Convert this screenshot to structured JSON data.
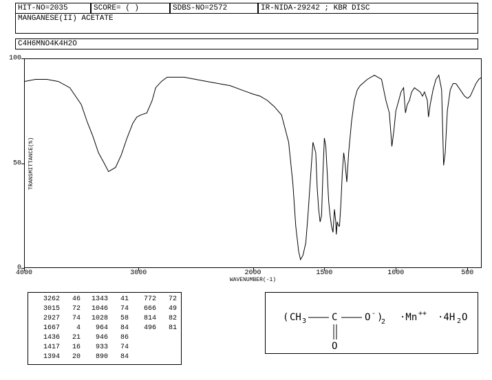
{
  "header": {
    "hit_no": "HIT-NO=2035",
    "score": "SCORE=  (  )",
    "sdbs_no": "SDBS-NO=2572",
    "ir_info": "IR-NIDA-29242 ; KBR DISC",
    "compound_name": "MANGANESE(II) ACETATE",
    "formula": "C4H6MNO4K4H2O"
  },
  "chart": {
    "type": "line",
    "y_label": "TRANSMITTANCE(%)",
    "x_label": "WAVENUMBER(-1)",
    "xlim": [
      4000,
      400
    ],
    "ylim": [
      0,
      100
    ],
    "y_ticks": [
      0,
      50,
      100
    ],
    "x_ticks": [
      4000,
      3000,
      2000,
      1500,
      1000,
      500
    ],
    "line_color": "#000000",
    "background_color": "#ffffff",
    "points": [
      [
        4000,
        89
      ],
      [
        3900,
        90
      ],
      [
        3800,
        90
      ],
      [
        3700,
        89
      ],
      [
        3600,
        86
      ],
      [
        3500,
        78
      ],
      [
        3450,
        70
      ],
      [
        3400,
        63
      ],
      [
        3350,
        55
      ],
      [
        3300,
        50
      ],
      [
        3262,
        46
      ],
      [
        3200,
        48
      ],
      [
        3150,
        54
      ],
      [
        3100,
        62
      ],
      [
        3050,
        69
      ],
      [
        3015,
        72
      ],
      [
        2980,
        73
      ],
      [
        2927,
        74
      ],
      [
        2880,
        80
      ],
      [
        2850,
        86
      ],
      [
        2800,
        89
      ],
      [
        2750,
        91
      ],
      [
        2700,
        91
      ],
      [
        2600,
        91
      ],
      [
        2500,
        90
      ],
      [
        2400,
        89
      ],
      [
        2300,
        88
      ],
      [
        2200,
        87
      ],
      [
        2100,
        85
      ],
      [
        2050,
        84
      ],
      [
        2000,
        83
      ],
      [
        1950,
        82
      ],
      [
        1900,
        80
      ],
      [
        1850,
        77
      ],
      [
        1800,
        73
      ],
      [
        1750,
        60
      ],
      [
        1720,
        40
      ],
      [
        1700,
        20
      ],
      [
        1680,
        8
      ],
      [
        1667,
        4
      ],
      [
        1650,
        6
      ],
      [
        1630,
        12
      ],
      [
        1615,
        25
      ],
      [
        1600,
        40
      ],
      [
        1580,
        60
      ],
      [
        1560,
        55
      ],
      [
        1550,
        38
      ],
      [
        1540,
        28
      ],
      [
        1530,
        22
      ],
      [
        1520,
        25
      ],
      [
        1510,
        45
      ],
      [
        1500,
        62
      ],
      [
        1490,
        58
      ],
      [
        1480,
        45
      ],
      [
        1470,
        32
      ],
      [
        1460,
        25
      ],
      [
        1450,
        20
      ],
      [
        1440,
        17
      ],
      [
        1436,
        21
      ],
      [
        1430,
        28
      ],
      [
        1420,
        22
      ],
      [
        1417,
        16
      ],
      [
        1410,
        22
      ],
      [
        1400,
        20
      ],
      [
        1394,
        20
      ],
      [
        1385,
        30
      ],
      [
        1375,
        45
      ],
      [
        1365,
        55
      ],
      [
        1355,
        50
      ],
      [
        1343,
        41
      ],
      [
        1330,
        55
      ],
      [
        1310,
        70
      ],
      [
        1290,
        80
      ],
      [
        1270,
        85
      ],
      [
        1250,
        87
      ],
      [
        1200,
        90
      ],
      [
        1150,
        92
      ],
      [
        1100,
        90
      ],
      [
        1070,
        80
      ],
      [
        1046,
        74
      ],
      [
        1028,
        58
      ],
      [
        1015,
        65
      ],
      [
        1000,
        75
      ],
      [
        980,
        80
      ],
      [
        964,
        84
      ],
      [
        946,
        86
      ],
      [
        933,
        74
      ],
      [
        920,
        78
      ],
      [
        905,
        80
      ],
      [
        890,
        84
      ],
      [
        870,
        86
      ],
      [
        850,
        85
      ],
      [
        830,
        84
      ],
      [
        814,
        82
      ],
      [
        800,
        84
      ],
      [
        780,
        80
      ],
      [
        772,
        72
      ],
      [
        760,
        78
      ],
      [
        740,
        85
      ],
      [
        720,
        90
      ],
      [
        700,
        92
      ],
      [
        680,
        85
      ],
      [
        666,
        49
      ],
      [
        655,
        55
      ],
      [
        640,
        75
      ],
      [
        620,
        85
      ],
      [
        600,
        88
      ],
      [
        580,
        88
      ],
      [
        560,
        86
      ],
      [
        540,
        84
      ],
      [
        520,
        82
      ],
      [
        500,
        81
      ],
      [
        496,
        81
      ],
      [
        480,
        82
      ],
      [
        460,
        85
      ],
      [
        440,
        88
      ],
      [
        420,
        90
      ],
      [
        400,
        91
      ]
    ]
  },
  "peak_table": {
    "rows": [
      [
        3262,
        46,
        1343,
        41,
        772,
        72
      ],
      [
        3015,
        72,
        1046,
        74,
        666,
        49
      ],
      [
        2927,
        74,
        1028,
        58,
        814,
        82
      ],
      [
        1667,
        4,
        964,
        84,
        496,
        81
      ],
      [
        1436,
        21,
        946,
        86,
        null,
        null
      ],
      [
        1417,
        16,
        933,
        74,
        null,
        null
      ],
      [
        1394,
        20,
        890,
        84,
        null,
        null
      ]
    ]
  },
  "structure": {
    "left_paren": "(",
    "ch3": "CH",
    "sub3": "3",
    "c": "C",
    "o_minus": "O",
    "superscript_minus": "-",
    "right_paren_2": ")",
    "sub2": "2",
    "dot1": "·Mn",
    "mn_charge": "++",
    "dot2": "·4H",
    "h2o_sub": "2",
    "h2o_o": "O",
    "dbl_o": "O"
  }
}
